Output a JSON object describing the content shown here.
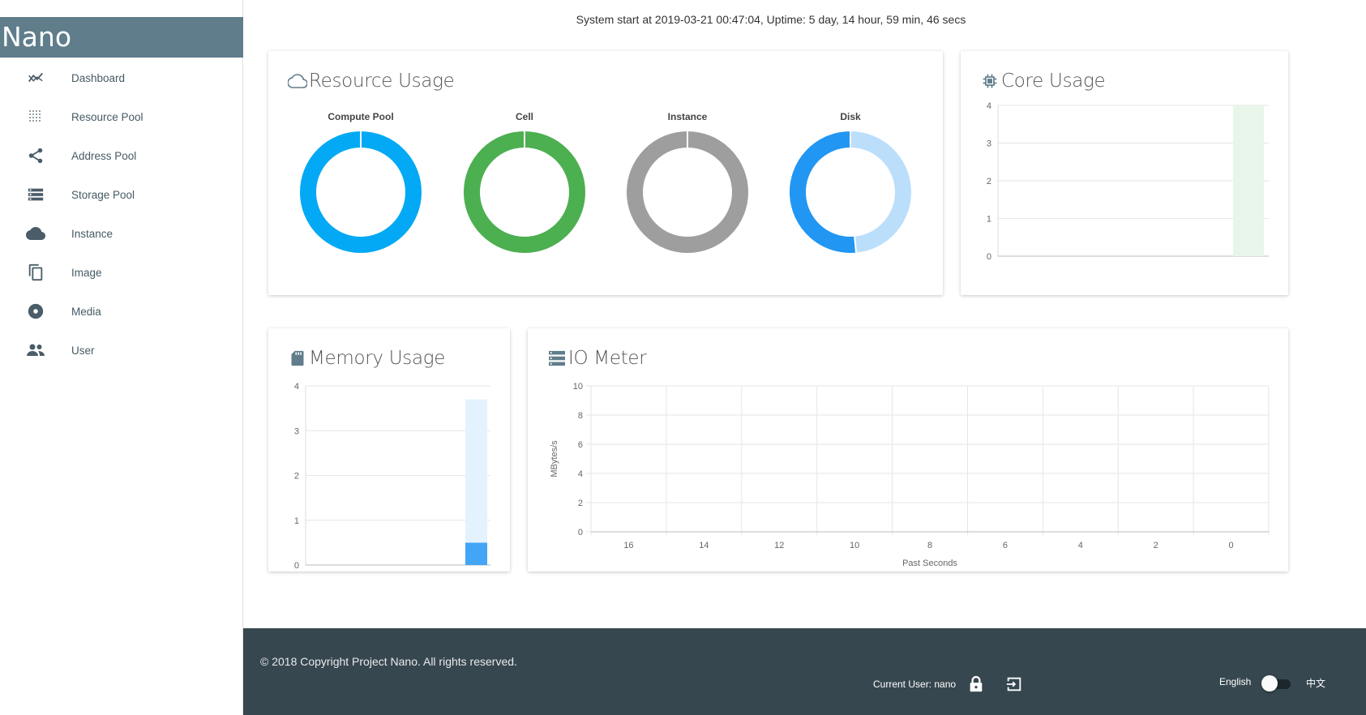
{
  "app": {
    "brand": "Nano"
  },
  "sidebar": {
    "items": [
      {
        "label": "Dashboard",
        "icon": "trending-icon"
      },
      {
        "label": "Resource Pool",
        "icon": "grid-dots-icon"
      },
      {
        "label": "Address Pool",
        "icon": "share-icon"
      },
      {
        "label": "Storage Pool",
        "icon": "storage-icon"
      },
      {
        "label": "Instance",
        "icon": "cloud-icon"
      },
      {
        "label": "Image",
        "icon": "copy-icon"
      },
      {
        "label": "Media",
        "icon": "disc-icon"
      },
      {
        "label": "User",
        "icon": "people-icon"
      }
    ]
  },
  "system": {
    "status": "System start at 2019-03-21 00:47:04, Uptime: 5 day, 14 hour, 59 min, 46 secs"
  },
  "resource_usage": {
    "title": "Resource Usage",
    "icon": "cloud-outline-icon",
    "donuts": [
      {
        "label": "Compute Pool",
        "segments": [
          {
            "value": 1,
            "color": "#03a9f4"
          }
        ]
      },
      {
        "label": "Cell",
        "segments": [
          {
            "value": 1,
            "color": "#4caf50"
          }
        ]
      },
      {
        "label": "Instance",
        "segments": [
          {
            "value": 1,
            "color": "#9e9e9e"
          }
        ]
      },
      {
        "label": "Disk",
        "segments": [
          {
            "value": 0.485,
            "color": "#bbdefb"
          },
          {
            "value": 0.515,
            "color": "#2196f3"
          }
        ]
      }
    ]
  },
  "core_usage": {
    "title": "Core Usage",
    "icon": "chip-icon"
  },
  "memory_usage": {
    "title": "Memory Usage",
    "icon": "sd-card-icon"
  },
  "io_meter": {
    "title": "IO Meter",
    "icon": "server-icon"
  },
  "chart_data": [
    {
      "type": "bar",
      "title": "Core Usage",
      "ylim": [
        0,
        4
      ],
      "yticks": [
        "0",
        "1",
        "2",
        "3",
        "4"
      ],
      "categories": [
        ""
      ],
      "series": [
        {
          "values": [
            0
          ],
          "color": "#4caf50"
        },
        {
          "values": [
            4
          ],
          "color": "#e8f5e9"
        }
      ],
      "grid": true
    },
    {
      "type": "bar",
      "title": "Memory Usage",
      "ylim": [
        0,
        4
      ],
      "yticks": [
        "0",
        "1",
        "2",
        "3",
        "4"
      ],
      "categories": [
        ""
      ],
      "series": [
        {
          "values": [
            0.5
          ],
          "color": "#42a5f5"
        },
        {
          "values": [
            3.2
          ],
          "color": "#e3f2fd"
        }
      ],
      "grid": true
    },
    {
      "type": "line",
      "title": "IO Meter",
      "xlabel": "Past Seconds",
      "ylabel": "MBytes/s",
      "ylim": [
        0,
        10
      ],
      "yticks": [
        "0",
        "2",
        "4",
        "6",
        "8",
        "10"
      ],
      "categories": [
        "16",
        "14",
        "12",
        "10",
        "8",
        "6",
        "4",
        "2",
        "0"
      ],
      "series": [],
      "grid": true
    }
  ],
  "footer": {
    "copyright": "© 2018 Copyright Project Nano. All rights reserved.",
    "current_user": "Current User: nano",
    "lang_en": "English",
    "lang_zh": "中文"
  }
}
